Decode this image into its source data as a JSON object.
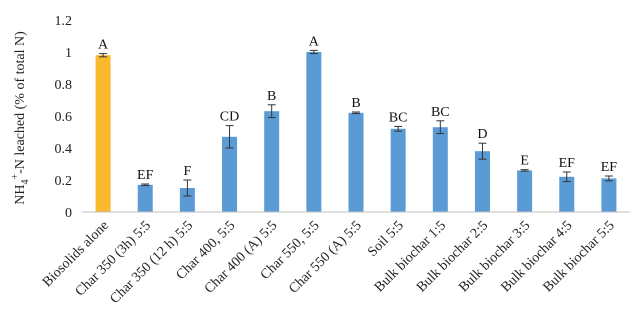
{
  "chart_data": {
    "type": "bar",
    "categories": [
      "Biosolids alone",
      "Char 350 (3h) 5:5",
      "Char 350 (12 h) 5:5",
      "Char 400, 5:5",
      "Char 400 (A) 5:5",
      "Char 550, 5:5",
      "Char  550 (A) 5:5",
      "Soil 5:5",
      "Bulk biochar  1:5",
      "Bulk biochar  2:5",
      "Bulk biochar  3:5",
      "Bulk biochar  4:5",
      "Bulk biochar  5:5"
    ],
    "values": [
      0.98,
      0.17,
      0.15,
      0.47,
      0.63,
      1.0,
      0.62,
      0.52,
      0.53,
      0.38,
      0.26,
      0.22,
      0.21
    ],
    "errors": [
      0.01,
      0.005,
      0.05,
      0.07,
      0.04,
      0.01,
      0.005,
      0.015,
      0.04,
      0.05,
      0.005,
      0.03,
      0.015
    ],
    "letters": [
      "A",
      "EF",
      "F",
      "CD",
      "B",
      "A",
      "B",
      "BC",
      "BC",
      "D",
      "E",
      "EF",
      "EF"
    ],
    "bar_colors": [
      "#F8B92C",
      "#5B9BD5",
      "#5B9BD5",
      "#5B9BD5",
      "#5B9BD5",
      "#5B9BD5",
      "#5B9BD5",
      "#5B9BD5",
      "#5B9BD5",
      "#5B9BD5",
      "#5B9BD5",
      "#5B9BD5",
      "#5B9BD5"
    ],
    "ylim": [
      0,
      1.2
    ],
    "yticks": [
      "0",
      "0.2",
      "0.4",
      "0.6",
      "0.8",
      "1",
      "1.2"
    ],
    "ylabel_parts": [
      "NH",
      "4",
      "+",
      "-N  leached (% of total N)"
    ],
    "xlabel": "",
    "grid": false,
    "legend": "none"
  }
}
